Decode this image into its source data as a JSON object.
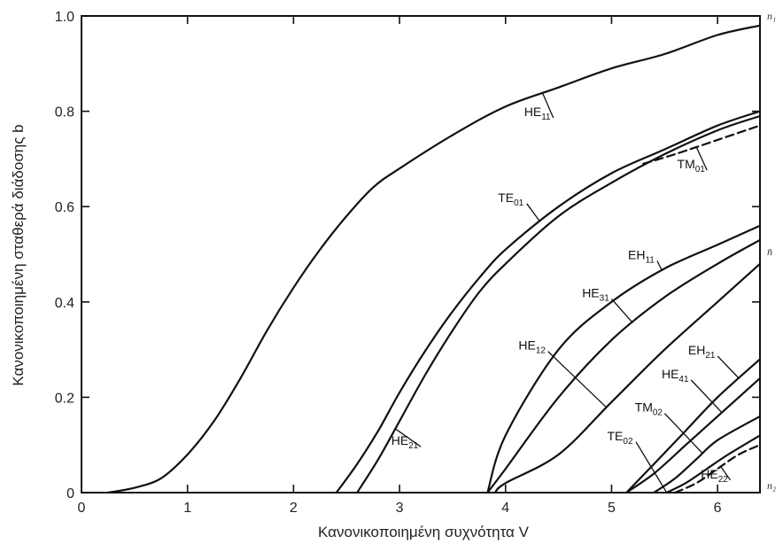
{
  "chart_data": {
    "type": "line",
    "title": "",
    "xlabel": "Κανονικοποιημένη συχνότητα V",
    "ylabel": "Κανονικοποιημένη σταθερά διάδοσης b",
    "xlim": [
      0,
      6.4
    ],
    "ylim": [
      0,
      1.0
    ],
    "xticks": [
      "0",
      "1",
      "2",
      "3",
      "4",
      "5",
      "6"
    ],
    "yticks": [
      "0",
      "0.2",
      "0.4",
      "0.6",
      "0.8",
      "1.0"
    ],
    "edge_labels": {
      "top": "n₁",
      "middle": "n̄",
      "bottom": "n₂"
    },
    "series": [
      {
        "name": "HE11",
        "label_main": "HE",
        "label_sub": "11",
        "dashed": false,
        "label_at": [
          4.3,
          0.79
        ],
        "x": [
          0.25,
          0.5,
          0.75,
          1.0,
          1.25,
          1.5,
          1.75,
          2.0,
          2.25,
          2.5,
          2.75,
          3.0,
          3.5,
          4.0,
          4.5,
          5.0,
          5.5,
          6.0,
          6.4
        ],
        "y": [
          0.0,
          0.01,
          0.03,
          0.08,
          0.15,
          0.24,
          0.34,
          0.43,
          0.51,
          0.58,
          0.64,
          0.68,
          0.75,
          0.81,
          0.85,
          0.89,
          0.92,
          0.96,
          0.98
        ]
      },
      {
        "name": "TE01",
        "label_main": "TE",
        "label_sub": "01",
        "dashed": false,
        "label_at": [
          4.05,
          0.61
        ],
        "x": [
          2.405,
          2.6,
          2.8,
          3.0,
          3.25,
          3.5,
          3.75,
          4.0,
          4.5,
          5.0,
          5.5,
          6.0,
          6.4
        ],
        "y": [
          0.0,
          0.06,
          0.13,
          0.21,
          0.3,
          0.38,
          0.45,
          0.51,
          0.6,
          0.67,
          0.72,
          0.77,
          0.8
        ]
      },
      {
        "name": "HE21",
        "label_main": "HE",
        "label_sub": "21",
        "dashed": false,
        "label_at": [
          3.05,
          0.1
        ],
        "x": [
          2.6,
          2.8,
          3.0,
          3.25,
          3.5,
          3.75,
          4.0,
          4.5,
          5.0,
          5.5,
          6.0,
          6.4
        ],
        "y": [
          0.0,
          0.07,
          0.15,
          0.25,
          0.34,
          0.42,
          0.48,
          0.58,
          0.65,
          0.71,
          0.76,
          0.79
        ]
      },
      {
        "name": "TM01",
        "label_main": "TM",
        "label_sub": "01",
        "dashed": true,
        "label_at": [
          5.75,
          0.68
        ],
        "x": [
          5.3,
          5.6,
          6.0,
          6.4
        ],
        "y": [
          0.69,
          0.71,
          0.74,
          0.77
        ]
      },
      {
        "name": "EH11",
        "label_main": "EH",
        "label_sub": "11",
        "dashed": false,
        "label_at": [
          5.28,
          0.49
        ],
        "x": [
          3.83,
          4.0,
          4.5,
          5.0,
          5.5,
          6.0,
          6.4
        ],
        "y": [
          0.0,
          0.12,
          0.3,
          0.4,
          0.47,
          0.52,
          0.56
        ]
      },
      {
        "name": "HE31",
        "label_main": "HE",
        "label_sub": "31",
        "dashed": false,
        "label_at": [
          4.85,
          0.41
        ],
        "x": [
          3.83,
          4.0,
          4.5,
          5.0,
          5.5,
          6.0,
          6.4
        ],
        "y": [
          0.0,
          0.05,
          0.2,
          0.32,
          0.41,
          0.48,
          0.53
        ]
      },
      {
        "name": "HE12",
        "label_main": "HE",
        "label_sub": "12",
        "dashed": false,
        "label_at": [
          4.25,
          0.3
        ],
        "x": [
          3.9,
          4.0,
          4.5,
          5.0,
          5.5,
          6.0,
          6.4
        ],
        "y": [
          0.0,
          0.02,
          0.08,
          0.19,
          0.3,
          0.4,
          0.48
        ]
      },
      {
        "name": "EH21",
        "label_main": "EH",
        "label_sub": "21",
        "dashed": false,
        "label_at": [
          5.85,
          0.29
        ],
        "x": [
          5.14,
          5.4,
          5.7,
          6.0,
          6.4
        ],
        "y": [
          0.0,
          0.06,
          0.13,
          0.2,
          0.28
        ]
      },
      {
        "name": "HE41",
        "label_main": "HE",
        "label_sub": "41",
        "dashed": false,
        "label_at": [
          5.6,
          0.24
        ],
        "x": [
          5.14,
          5.4,
          5.7,
          6.0,
          6.4
        ],
        "y": [
          0.0,
          0.04,
          0.1,
          0.16,
          0.24
        ]
      },
      {
        "name": "TM02",
        "label_main": "TM",
        "label_sub": "02",
        "dashed": false,
        "label_at": [
          5.35,
          0.17
        ],
        "x": [
          5.4,
          5.6,
          5.8,
          6.0,
          6.4
        ],
        "y": [
          0.0,
          0.03,
          0.07,
          0.11,
          0.16
        ]
      },
      {
        "name": "TE02",
        "label_main": "TE",
        "label_sub": "02",
        "dashed": false,
        "label_at": [
          5.08,
          0.11
        ],
        "x": [
          5.52,
          5.7,
          5.9,
          6.1,
          6.4
        ],
        "y": [
          0.0,
          0.02,
          0.05,
          0.08,
          0.12
        ]
      },
      {
        "name": "HE22",
        "label_main": "HE",
        "label_sub": "22",
        "dashed": true,
        "label_at": [
          5.97,
          0.03
        ],
        "x": [
          5.6,
          5.8,
          6.0,
          6.2,
          6.4
        ],
        "y": [
          0.0,
          0.02,
          0.05,
          0.08,
          0.1
        ]
      }
    ]
  }
}
